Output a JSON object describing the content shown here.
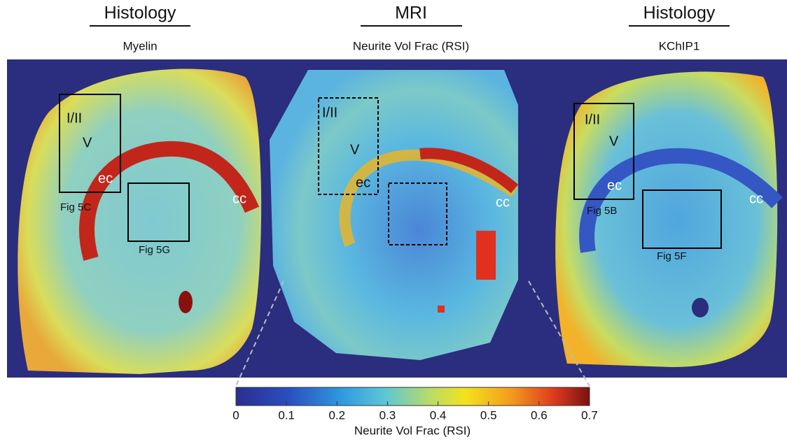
{
  "panels": [
    {
      "title": "Histology",
      "subtitle": "Myelin",
      "labels": [
        "I/II",
        "V",
        "ec",
        "cc",
        "Fig 5C",
        "Fig 5G"
      ]
    },
    {
      "title": "MRI",
      "subtitle": "Neurite Vol Frac (RSI)",
      "labels": [
        "I/II",
        "V",
        "ec",
        "cc"
      ]
    },
    {
      "title": "Histology",
      "subtitle": "KChIP1",
      "labels": [
        "I/II",
        "V",
        "ec",
        "cc",
        "Fig 5B",
        "Fig 5F"
      ]
    }
  ],
  "colorbar": {
    "label": "Neurite Vol Frac (RSI)",
    "lim": [
      0,
      0.7
    ],
    "ticks": [
      0,
      0.1,
      0.2,
      0.3,
      0.4,
      0.5,
      0.6,
      0.7
    ]
  }
}
